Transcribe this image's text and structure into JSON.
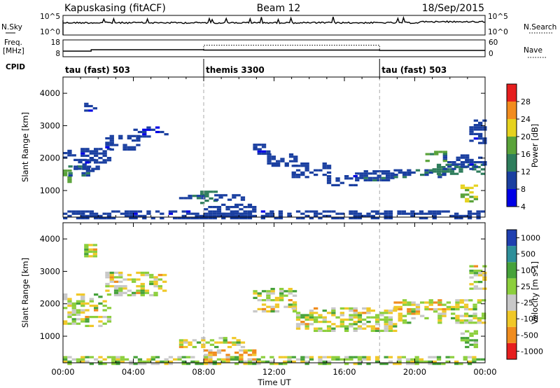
{
  "header": {
    "station": "Kapuskasing (fitACF)",
    "beam": "Beam 12",
    "date": "18/Sep/2015"
  },
  "nsky_panel": {
    "left_label": "N.Sky",
    "right_label": "N.Search",
    "ticks_left": [
      "10^5",
      "10^0"
    ],
    "ticks_right": [
      "10^5",
      "10^0"
    ]
  },
  "freq_panel": {
    "left_label_line1": "Freq.",
    "left_label_line2": "[MHz]",
    "right_label": "Nave",
    "ticks_left": [
      "18",
      "8"
    ],
    "ticks_right": [
      "60",
      "0"
    ]
  },
  "cpid": {
    "label": "CPID",
    "segments": [
      {
        "name": "tau (fast) 503",
        "start_hour": 0,
        "end_hour": 8
      },
      {
        "name": "themis 3300",
        "start_hour": 8,
        "end_hour": 18
      },
      {
        "name": "tau (fast) 503",
        "start_hour": 18,
        "end_hour": 24
      }
    ]
  },
  "chart_data": [
    {
      "type": "heatmap",
      "title": "",
      "xlabel": "Time UT",
      "ylabel": "Slant Range [km]",
      "xlim": [
        0,
        24
      ],
      "ylim": [
        180,
        4500
      ],
      "y_ticks": [
        "1000",
        "2000",
        "3000",
        "4000"
      ],
      "colorbar_label": "Power [dB]",
      "colorbar_ticks": [
        "4",
        "8",
        "12",
        "16",
        "20",
        "24",
        "28"
      ],
      "colorbar_range": [
        0,
        30
      ],
      "colorbar_colors": [
        "#0000e6",
        "#1a3fa0",
        "#2e7d5c",
        "#5aa33a",
        "#e6d21e",
        "#f28c1e",
        "#e61e1e"
      ],
      "regions": [
        {
          "x0": 0.0,
          "x1": 0.5,
          "y0": 1300,
          "y1": 1650,
          "value": 16
        },
        {
          "x0": 0.3,
          "x1": 1.8,
          "y0": 1500,
          "y1": 1800,
          "value": 9
        },
        {
          "x0": 0.6,
          "x1": 1.9,
          "y0": 1700,
          "y1": 2000,
          "value": 7
        },
        {
          "x0": 1.0,
          "x1": 2.6,
          "y0": 1900,
          "y1": 2350,
          "value": 6
        },
        {
          "x0": 0.0,
          "x1": 0.6,
          "y0": 2050,
          "y1": 2300,
          "value": 7
        },
        {
          "x0": 2.4,
          "x1": 4.2,
          "y0": 2300,
          "y1": 2750,
          "value": 6
        },
        {
          "x0": 4.0,
          "x1": 5.8,
          "y0": 2700,
          "y1": 3000,
          "value": 5
        },
        {
          "x0": 1.2,
          "x1": 1.8,
          "y0": 3500,
          "y1": 3850,
          "value": 6
        },
        {
          "x0": 6.6,
          "x1": 8.0,
          "y0": 800,
          "y1": 900,
          "value": 8
        },
        {
          "x0": 7.8,
          "x1": 8.6,
          "y0": 650,
          "y1": 1000,
          "value": 11
        },
        {
          "x0": 8.6,
          "x1": 10.2,
          "y0": 750,
          "y1": 950,
          "value": 6
        },
        {
          "x0": 8.0,
          "x1": 10.8,
          "y0": 250,
          "y1": 650,
          "value": 6
        },
        {
          "x0": 10.8,
          "x1": 11.8,
          "y0": 2100,
          "y1": 2500,
          "value": 6
        },
        {
          "x0": 11.6,
          "x1": 13.2,
          "y0": 1800,
          "y1": 2200,
          "value": 6
        },
        {
          "x0": 13.0,
          "x1": 15.2,
          "y0": 1450,
          "y1": 1900,
          "value": 6
        },
        {
          "x0": 15.0,
          "x1": 16.6,
          "y0": 1200,
          "y1": 1500,
          "value": 6
        },
        {
          "x0": 16.6,
          "x1": 18.8,
          "y0": 1350,
          "y1": 1650,
          "value": 7
        },
        {
          "x0": 18.8,
          "x1": 21.6,
          "y0": 1450,
          "y1": 1700,
          "value": 8
        },
        {
          "x0": 21.0,
          "x1": 24.0,
          "y0": 1550,
          "y1": 1850,
          "value": 11
        },
        {
          "x0": 21.6,
          "x1": 24.0,
          "y0": 1700,
          "y1": 2150,
          "value": 6
        },
        {
          "x0": 20.6,
          "x1": 21.8,
          "y0": 1950,
          "y1": 2350,
          "value": 14
        },
        {
          "x0": 23.1,
          "x1": 24.0,
          "y0": 2500,
          "y1": 3200,
          "value": 6
        },
        {
          "x0": 22.6,
          "x1": 23.6,
          "y0": 700,
          "y1": 1200,
          "value": 17
        },
        {
          "x0": 0.0,
          "x1": 24.0,
          "y0": 180,
          "y1": 400,
          "value": 6
        }
      ]
    },
    {
      "type": "heatmap",
      "title": "",
      "xlabel": "Time UT",
      "ylabel": "Slant Range [km]",
      "xlim": [
        0,
        24
      ],
      "ylim": [
        180,
        4500
      ],
      "y_ticks": [
        "1000",
        "2000",
        "3000",
        "4000"
      ],
      "x_ticks": [
        "00:00",
        "04:00",
        "08:00",
        "12:00",
        "16:00",
        "20:00",
        "00:00"
      ],
      "colorbar_label": "Velocity [m s-1]",
      "colorbar_ticks": [
        "1000",
        "500",
        "100",
        "25",
        "-25",
        "-100",
        "-500",
        "-1000"
      ],
      "colorbar_range": [
        -1000,
        1000
      ],
      "colorbar_colors": [
        "#1f3fb0",
        "#2e8f9a",
        "#46a23a",
        "#8ccf3c",
        "#c8c8c8",
        "#f0c828",
        "#f08c1e",
        "#e61e1e"
      ],
      "regions": [
        {
          "x0": 0.0,
          "x1": 2.6,
          "y0": 1350,
          "y1": 2350,
          "value": 0
        },
        {
          "x0": 2.4,
          "x1": 5.8,
          "y0": 2300,
          "y1": 3000,
          "value": 0
        },
        {
          "x0": 1.2,
          "x1": 1.8,
          "y0": 3500,
          "y1": 3850,
          "value": 0
        },
        {
          "x0": 6.6,
          "x1": 10.2,
          "y0": 700,
          "y1": 1000,
          "value": 0
        },
        {
          "x0": 8.0,
          "x1": 10.8,
          "y0": 250,
          "y1": 600,
          "value": -80
        },
        {
          "x0": 10.8,
          "x1": 13.2,
          "y0": 1800,
          "y1": 2500,
          "value": 0
        },
        {
          "x0": 13.0,
          "x1": 18.8,
          "y0": 1200,
          "y1": 1900,
          "value": 0
        },
        {
          "x0": 18.8,
          "x1": 24.0,
          "y0": 1450,
          "y1": 2150,
          "value": 0
        },
        {
          "x0": 23.1,
          "x1": 24.0,
          "y0": 2500,
          "y1": 3200,
          "value": 0
        },
        {
          "x0": 22.6,
          "x1": 23.6,
          "y0": 700,
          "y1": 1200,
          "value": 120
        },
        {
          "x0": 0.0,
          "x1": 24.0,
          "y0": 180,
          "y1": 400,
          "value": 40
        }
      ]
    }
  ]
}
